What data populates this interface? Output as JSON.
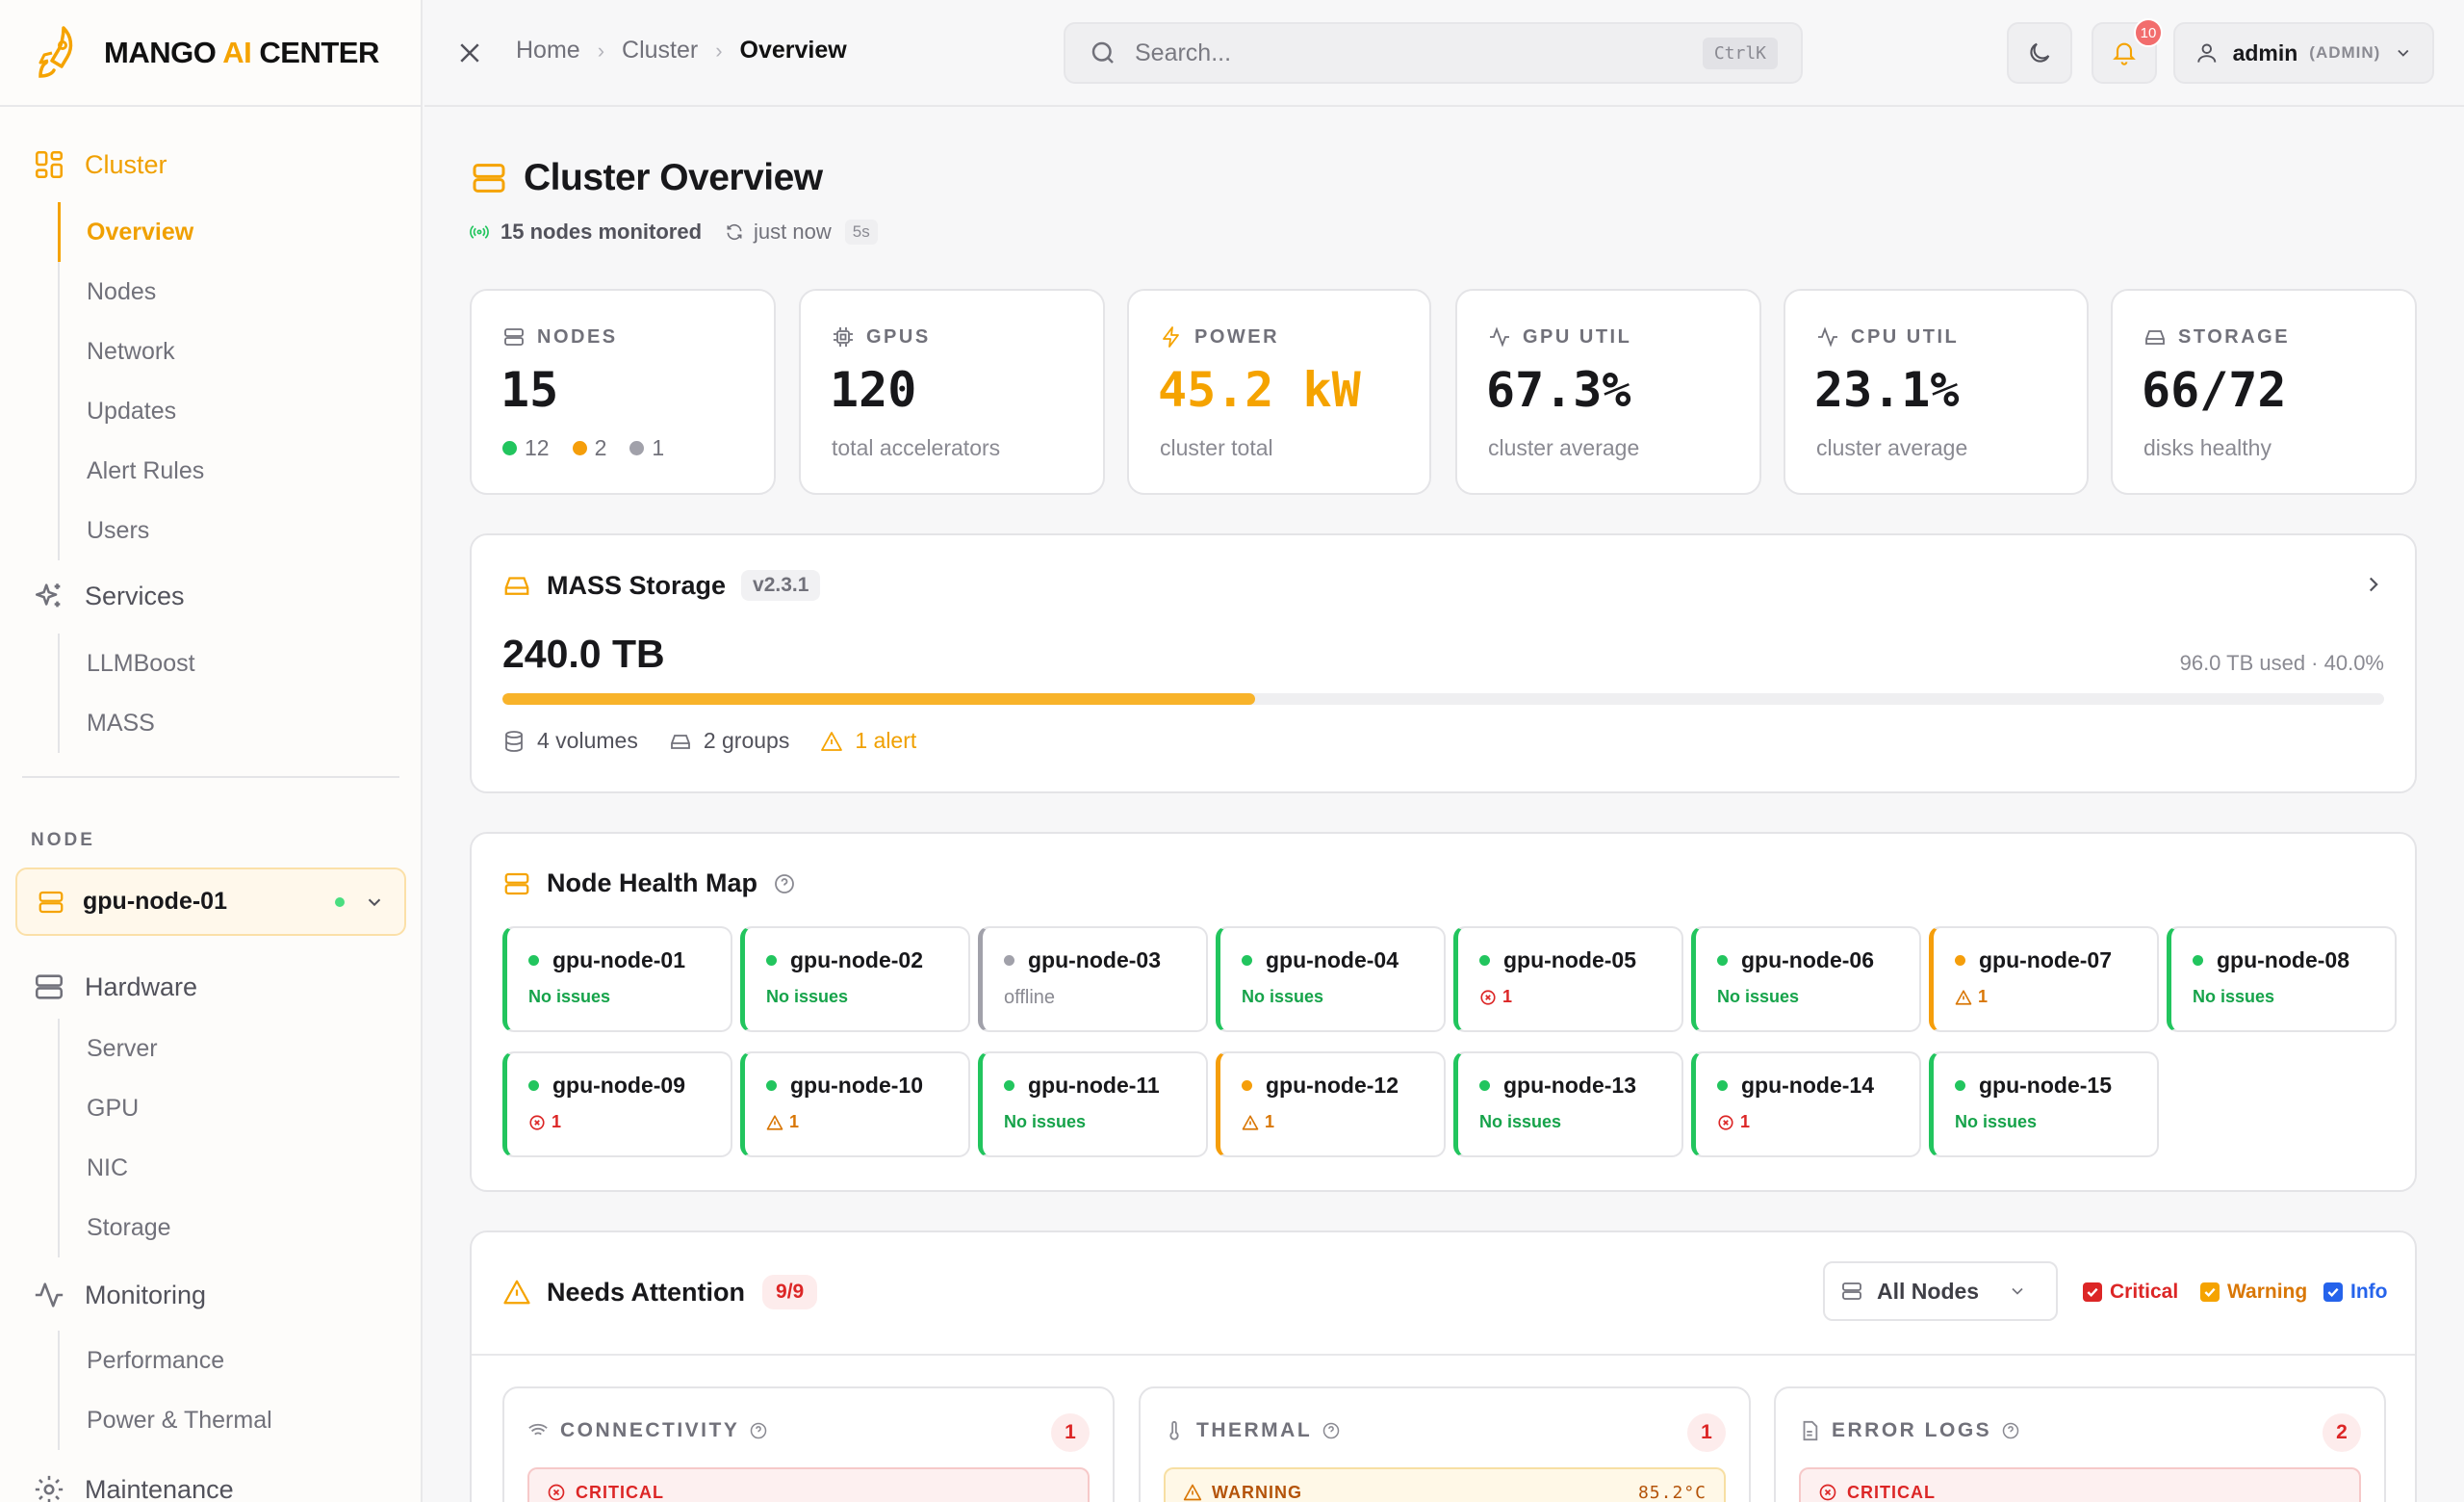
{
  "brand": {
    "name_part1": "MANGO ",
    "name_ai": "AI",
    "name_part2": " CENTER",
    "accent": "#f5a300"
  },
  "sidebar": {
    "groups": [
      {
        "label": "Cluster",
        "icon": "grid-icon",
        "items": [
          "Overview",
          "Nodes",
          "Network",
          "Updates",
          "Alert Rules",
          "Users"
        ]
      },
      {
        "label": "Services",
        "icon": "sparkles-icon",
        "items": [
          "LLMBoost",
          "MASS"
        ]
      },
      {
        "label": "Hardware",
        "icon": "server-icon",
        "items": [
          "Server",
          "GPU",
          "NIC",
          "Storage"
        ]
      },
      {
        "label": "Monitoring",
        "icon": "activity-icon",
        "items": [
          "Performance",
          "Power & Thermal"
        ]
      },
      {
        "label": "Maintenance",
        "icon": "gear-icon",
        "items": []
      }
    ],
    "node_section_label": "NODE",
    "selected_node": "gpu-node-01"
  },
  "header": {
    "breadcrumbs": [
      "Home",
      "Cluster",
      "Overview"
    ],
    "search_placeholder": "Search...",
    "search_shortcut": "CtrlK",
    "notification_count": "10",
    "user_name": "admin",
    "user_role": "(ADMIN)"
  },
  "page": {
    "title": "Cluster Overview",
    "nodes_monitored": "15 nodes monitored",
    "refreshed": "just now",
    "refresh_interval": "5s"
  },
  "stats": [
    {
      "label": "NODES",
      "value": "15",
      "counts": [
        {
          "n": "12",
          "color": "#22c55e"
        },
        {
          "n": "2",
          "color": "#f59e0b"
        },
        {
          "n": "1",
          "color": "#a1a1aa"
        }
      ]
    },
    {
      "label": "GPUS",
      "value": "120",
      "caption": "total accelerators"
    },
    {
      "label": "POWER",
      "value": "45.2 kW",
      "caption": "cluster total"
    },
    {
      "label": "GPU UTIL",
      "value": "67.3%",
      "caption": "cluster average"
    },
    {
      "label": "CPU UTIL",
      "value": "23.1%",
      "caption": "cluster average"
    },
    {
      "label": "STORAGE",
      "value": "66/72",
      "caption": "disks healthy"
    }
  ],
  "storage": {
    "title": "MASS Storage",
    "version": "v2.3.1",
    "total": "240.0 TB",
    "used_text": "96.0 TB used · 40.0%",
    "used_fraction": 0.4,
    "volumes": "4 volumes",
    "groups": "2 groups",
    "alerts": "1 alert"
  },
  "health_map": {
    "title": "Node Health Map",
    "nodes": [
      {
        "name": "gpu-node-01",
        "state": "ok",
        "status": "No issues"
      },
      {
        "name": "gpu-node-02",
        "state": "ok",
        "status": "No issues"
      },
      {
        "name": "gpu-node-03",
        "state": "off",
        "status": "offline"
      },
      {
        "name": "gpu-node-04",
        "state": "ok",
        "status": "No issues"
      },
      {
        "name": "gpu-node-05",
        "state": "err",
        "status": "1"
      },
      {
        "name": "gpu-node-06",
        "state": "ok",
        "status": "No issues"
      },
      {
        "name": "gpu-node-07",
        "state": "wrn",
        "status": "1",
        "tile": "warn"
      },
      {
        "name": "gpu-node-08",
        "state": "ok",
        "status": "No issues"
      },
      {
        "name": "gpu-node-09",
        "state": "err",
        "status": "1"
      },
      {
        "name": "gpu-node-10",
        "state": "wrn",
        "status": "1"
      },
      {
        "name": "gpu-node-11",
        "state": "ok",
        "status": "No issues"
      },
      {
        "name": "gpu-node-12",
        "state": "wrn",
        "status": "1",
        "tile": "warn"
      },
      {
        "name": "gpu-node-13",
        "state": "ok",
        "status": "No issues"
      },
      {
        "name": "gpu-node-14",
        "state": "err",
        "status": "1"
      },
      {
        "name": "gpu-node-15",
        "state": "ok",
        "status": "No issues"
      }
    ]
  },
  "attention": {
    "title": "Needs Attention",
    "count": "9/9",
    "filter": "All Nodes",
    "filters": {
      "critical": "Critical",
      "warning": "Warning",
      "info": "Info"
    },
    "panels": [
      {
        "label": "CONNECTIVITY",
        "count": "1",
        "item_level": "CRITICAL",
        "item_value": ""
      },
      {
        "label": "THERMAL",
        "count": "1",
        "item_level": "WARNING",
        "item_value": "85.2°C"
      },
      {
        "label": "ERROR LOGS",
        "count": "2",
        "item_level": "CRITICAL",
        "item_value": ""
      }
    ]
  }
}
